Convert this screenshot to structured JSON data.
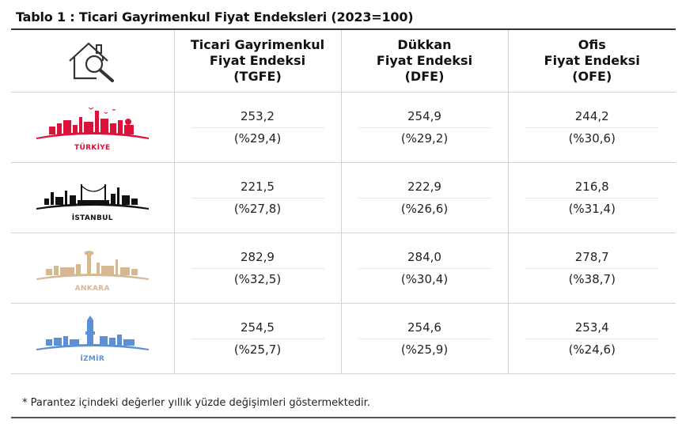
{
  "title": "Tablo 1 : Ticari Gayrimenkul Fiyat Endeksleri (2023=100)",
  "columns": [
    {
      "lines": [
        "Ticari Gayrimenkul",
        "Fiyat Endeksi",
        "(TGFE)"
      ]
    },
    {
      "lines": [
        "Dükkan",
        "Fiyat Endeksi",
        "(DFE)"
      ]
    },
    {
      "lines": [
        "Ofis",
        "Fiyat Endeksi",
        "(OFE)"
      ]
    }
  ],
  "header_icon": "house-search-icon",
  "rows": [
    {
      "city": "TÜRKİYE",
      "color": "#d9133a",
      "icon": "turkiye-skyline-icon",
      "values": [
        {
          "v": "253,2",
          "c": "(%29,4)"
        },
        {
          "v": "254,9",
          "c": "(%29,2)"
        },
        {
          "v": "244,2",
          "c": "(%30,6)"
        }
      ]
    },
    {
      "city": "İSTANBUL",
      "color": "#111111",
      "icon": "istanbul-skyline-icon",
      "values": [
        {
          "v": "221,5",
          "c": "(%27,8)"
        },
        {
          "v": "222,9",
          "c": "(%26,6)"
        },
        {
          "v": "216,8",
          "c": "(%31,4)"
        }
      ]
    },
    {
      "city": "ANKARA",
      "color": "#d6b893",
      "icon": "ankara-skyline-icon",
      "values": [
        {
          "v": "282,9",
          "c": "(%32,5)"
        },
        {
          "v": "284,0",
          "c": "(%30,4)"
        },
        {
          "v": "278,7",
          "c": "(%38,7)"
        }
      ]
    },
    {
      "city": "İZMİR",
      "color": "#5b8fd6",
      "icon": "izmir-skyline-icon",
      "values": [
        {
          "v": "254,5",
          "c": "(%25,7)"
        },
        {
          "v": "254,6",
          "c": "(%25,9)"
        },
        {
          "v": "253,4",
          "c": "(%24,6)"
        }
      ]
    }
  ],
  "footnote": "* Parantez içindeki değerler yıllık yüzde değişimleri göstermektedir."
}
